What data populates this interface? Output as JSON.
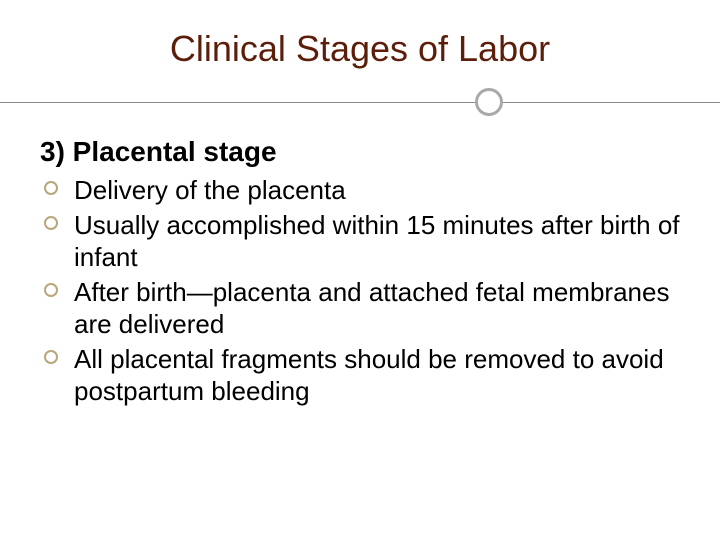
{
  "slide": {
    "title": "Clinical Stages of Labor",
    "title_color": "#5c1e0a",
    "title_fontsize": 36,
    "divider": {
      "line_color": "#888888",
      "circle_border_color": "#a9a9a9",
      "circle_position_pct": 66
    },
    "subheading": "3) Placental stage",
    "subheading_fontsize": 28,
    "bullets": [
      {
        "text": "Delivery of the placenta"
      },
      {
        "text": "Usually accomplished within 15 minutes after birth of infant"
      },
      {
        "text": "After birth—placenta and attached fetal membranes are delivered"
      },
      {
        "text": "All placental fragments should be removed to avoid postpartum bleeding"
      }
    ],
    "bullet_fontsize": 26,
    "bullet_marker_color": "#b8a67d",
    "background_color": "#ffffff"
  }
}
